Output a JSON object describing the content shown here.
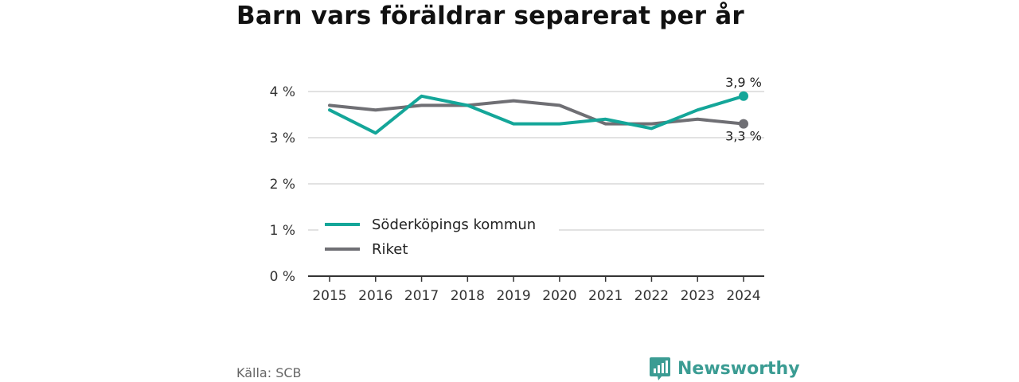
{
  "title": "Barn vars föräldrar separerat per år",
  "source": "Källa: SCB",
  "brand": {
    "name": "Newsworthy",
    "icon": "newsworthy-logo-icon"
  },
  "colors": {
    "kommun": "#14a699",
    "riket": "#6f6f74",
    "grid": "#d9d9d9",
    "axis": "#333333"
  },
  "chart_data": {
    "type": "line",
    "x": [
      2015,
      2016,
      2017,
      2018,
      2019,
      2020,
      2021,
      2022,
      2023,
      2024
    ],
    "ylim": [
      0,
      4
    ],
    "yticks": [
      0,
      1,
      2,
      3,
      4
    ],
    "ytick_labels": [
      "0 %",
      "1 %",
      "2 %",
      "3 %",
      "4 %"
    ],
    "grid": true,
    "legend_position": "lower-left",
    "series": [
      {
        "name": "Söderköpings kommun",
        "color": "#14a699",
        "values": [
          3.6,
          3.1,
          3.9,
          3.7,
          3.3,
          3.3,
          3.4,
          3.2,
          3.6,
          3.9
        ],
        "end_label": "3,9 %"
      },
      {
        "name": "Riket",
        "color": "#6f6f74",
        "values": [
          3.7,
          3.6,
          3.7,
          3.7,
          3.8,
          3.7,
          3.3,
          3.3,
          3.4,
          3.3
        ],
        "end_label": "3,3 %"
      }
    ]
  }
}
